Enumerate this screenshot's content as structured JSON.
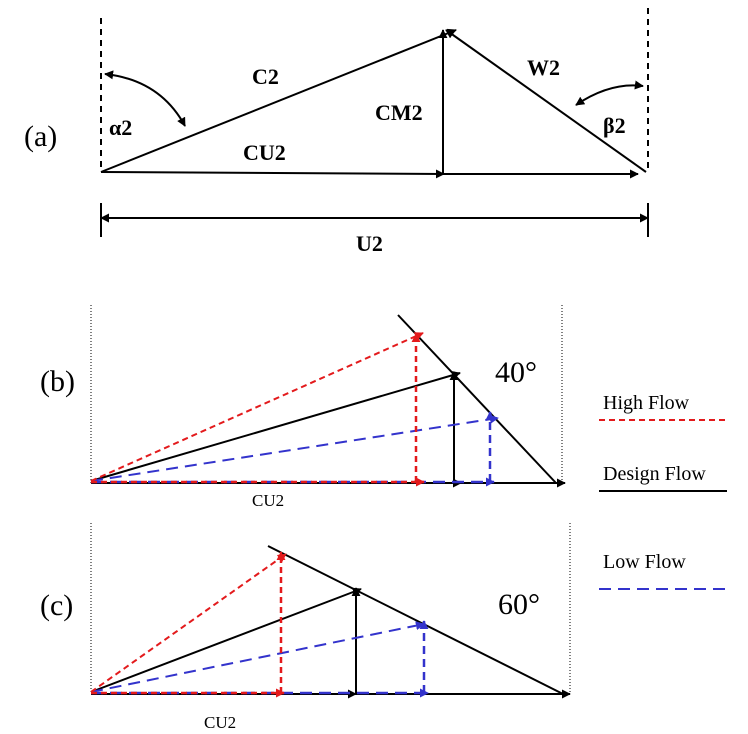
{
  "panel_a": {
    "tag": "(a)",
    "labels": {
      "c2": "C2",
      "w2": "W2",
      "cm2": "CM2",
      "cu2": "CU2",
      "alpha2": "α2",
      "beta2": "β2",
      "u2": "U2"
    }
  },
  "panel_b": {
    "tag": "(b)",
    "angle": "40°",
    "cu2": "CU2"
  },
  "panel_c": {
    "tag": "(c)",
    "angle": "60°",
    "cu2": "CU2"
  },
  "legend": {
    "high": {
      "label": "High Flow",
      "color": "#e31a1c"
    },
    "design": {
      "label": "Design Flow",
      "color": "#000000"
    },
    "low": {
      "label": "Low Flow",
      "color": "#3333cc"
    }
  }
}
